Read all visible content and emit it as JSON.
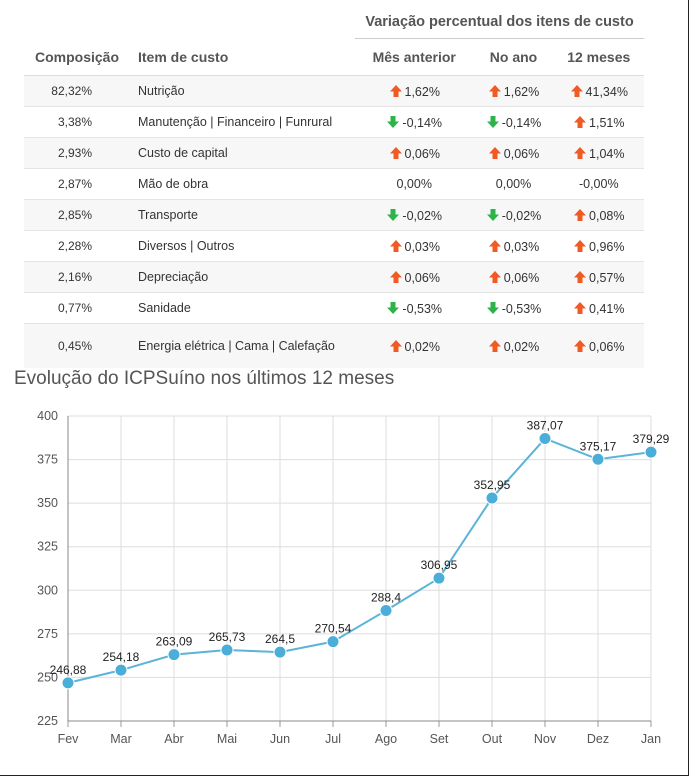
{
  "table": {
    "group_header": "Variação percentual dos itens de custo",
    "columns": {
      "composition": "Composição",
      "item": "Item de custo",
      "prev_month": "Mês anterior",
      "year": "No ano",
      "months12": "12 meses"
    },
    "rows": [
      {
        "composition": "82,32%",
        "item": "Nutrição",
        "prev_month": "1,62%",
        "prev_month_dir": "up",
        "year": "1,62%",
        "year_dir": "up",
        "months12": "41,34%",
        "months12_dir": "up"
      },
      {
        "composition": "3,38%",
        "item": "Manutenção | Financeiro | Funrural",
        "prev_month": "-0,14%",
        "prev_month_dir": "down",
        "year": "-0,14%",
        "year_dir": "down",
        "months12": "1,51%",
        "months12_dir": "up"
      },
      {
        "composition": "2,93%",
        "item": "Custo de capital",
        "prev_month": "0,06%",
        "prev_month_dir": "up",
        "year": "0,06%",
        "year_dir": "up",
        "months12": "1,04%",
        "months12_dir": "up"
      },
      {
        "composition": "2,87%",
        "item": "Mão de obra",
        "prev_month": "0,00%",
        "prev_month_dir": "none",
        "year": "0,00%",
        "year_dir": "none",
        "months12": "-0,00%",
        "months12_dir": "none"
      },
      {
        "composition": "2,85%",
        "item": "Transporte",
        "prev_month": "-0,02%",
        "prev_month_dir": "down",
        "year": "-0,02%",
        "year_dir": "down",
        "months12": "0,08%",
        "months12_dir": "up"
      },
      {
        "composition": "2,28%",
        "item": "Diversos | Outros",
        "prev_month": "0,03%",
        "prev_month_dir": "up",
        "year": "0,03%",
        "year_dir": "up",
        "months12": "0,96%",
        "months12_dir": "up"
      },
      {
        "composition": "2,16%",
        "item": "Depreciação",
        "prev_month": "0,06%",
        "prev_month_dir": "up",
        "year": "0,06%",
        "year_dir": "up",
        "months12": "0,57%",
        "months12_dir": "up"
      },
      {
        "composition": "0,77%",
        "item": "Sanidade",
        "prev_month": "-0,53%",
        "prev_month_dir": "down",
        "year": "-0,53%",
        "year_dir": "down",
        "months12": "0,41%",
        "months12_dir": "up"
      },
      {
        "composition": "0,45%",
        "item": "Energia elétrica | Cama | Calefação",
        "prev_month": "0,02%",
        "prev_month_dir": "up",
        "year": "0,02%",
        "year_dir": "up",
        "months12": "0,06%",
        "months12_dir": "up"
      }
    ]
  },
  "colors": {
    "up_arrow": "#f05a23",
    "down_arrow": "#2db34a",
    "line": "#5ab4d6",
    "point": "#4aaed8",
    "grid": "#dddddd"
  },
  "chart_data": {
    "type": "line",
    "title": "Evolução do ICPSuíno nos últimos 12 meses",
    "categories": [
      "Fev",
      "Mar",
      "Abr",
      "Mai",
      "Jun",
      "Jul",
      "Ago",
      "Set",
      "Out",
      "Nov",
      "Dez",
      "Jan"
    ],
    "values": [
      246.88,
      254.18,
      263.09,
      265.73,
      264.5,
      270.54,
      288.4,
      306.95,
      352.95,
      387.07,
      375.17,
      379.29
    ],
    "value_labels": [
      "246,88",
      "254,18",
      "263,09",
      "265,73",
      "264,5",
      "270,54",
      "288,4",
      "306,95",
      "352,95",
      "387,07",
      "375,17",
      "379,29"
    ],
    "yticks": [
      225,
      250,
      275,
      300,
      325,
      350,
      375,
      400
    ],
    "ylim": [
      225,
      400
    ],
    "xlabel": "",
    "ylabel": "",
    "grid": true,
    "legend": "none"
  }
}
